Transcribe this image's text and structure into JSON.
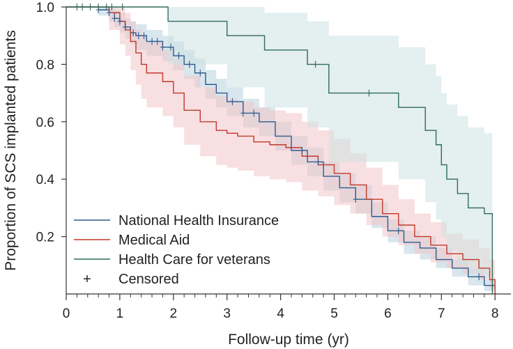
{
  "chart_data": {
    "type": "line",
    "subtype": "kaplan-meier",
    "title": "",
    "xlabel": "Follow-up time (yr)",
    "ylabel": "Proportion of SCS implanted patients",
    "xlim": [
      0,
      8.4
    ],
    "ylim": [
      0,
      1.0
    ],
    "x_ticks": [
      0,
      1,
      2,
      3,
      4,
      5,
      6,
      7,
      8
    ],
    "x_tick_labels": [
      "0",
      "1",
      "2",
      "3",
      "4",
      "5",
      "6",
      "7",
      "8"
    ],
    "y_ticks": [
      0.2,
      0.4,
      0.6,
      0.8,
      1.0
    ],
    "y_tick_labels": [
      "0.2",
      "0.4",
      "0.6",
      "0.8",
      "1.0"
    ],
    "legend": {
      "placement": "bottom-left",
      "censored_symbol": "+",
      "censored_label": "Censored"
    },
    "series": [
      {
        "name": "National Health Insurance",
        "color": "#2f5b8c",
        "band_color": "#b8d2e0",
        "x": [
          0,
          0.6,
          0.8,
          0.9,
          1.0,
          1.1,
          1.2,
          1.3,
          1.5,
          1.8,
          2.0,
          2.2,
          2.4,
          2.6,
          2.8,
          3.0,
          3.3,
          3.6,
          3.9,
          4.2,
          4.5,
          4.8,
          5.1,
          5.4,
          5.7,
          6.0,
          6.3,
          6.6,
          6.9,
          7.2,
          7.5,
          7.8,
          8.0
        ],
        "y": [
          1.0,
          0.99,
          0.98,
          0.96,
          0.95,
          0.93,
          0.91,
          0.9,
          0.88,
          0.86,
          0.83,
          0.8,
          0.77,
          0.73,
          0.7,
          0.67,
          0.63,
          0.6,
          0.55,
          0.5,
          0.46,
          0.41,
          0.37,
          0.33,
          0.27,
          0.22,
          0.18,
          0.16,
          0.12,
          0.09,
          0.06,
          0.03,
          0.0
        ],
        "lower": [
          1.0,
          0.97,
          0.95,
          0.93,
          0.91,
          0.89,
          0.87,
          0.85,
          0.83,
          0.81,
          0.78,
          0.75,
          0.72,
          0.68,
          0.65,
          0.62,
          0.58,
          0.55,
          0.5,
          0.45,
          0.41,
          0.36,
          0.32,
          0.28,
          0.23,
          0.18,
          0.14,
          0.12,
          0.09,
          0.06,
          0.03,
          0.01,
          0.0
        ],
        "upper": [
          1.0,
          1.0,
          1.0,
          0.99,
          0.98,
          0.96,
          0.95,
          0.94,
          0.92,
          0.9,
          0.88,
          0.85,
          0.82,
          0.78,
          0.75,
          0.72,
          0.68,
          0.65,
          0.6,
          0.55,
          0.51,
          0.46,
          0.42,
          0.38,
          0.32,
          0.26,
          0.22,
          0.2,
          0.16,
          0.12,
          0.09,
          0.05,
          0.02
        ],
        "censored_x": [
          0.6,
          0.8,
          0.9,
          1.0,
          1.1,
          1.25,
          1.35,
          1.45,
          1.6,
          1.7,
          1.8,
          1.95,
          2.1,
          2.3,
          2.5,
          3.1,
          3.3,
          3.5,
          4.4,
          4.7,
          5.4,
          6.2,
          7.7
        ]
      },
      {
        "name": "Medical Aid",
        "color": "#c0392b",
        "band_color": "#f2c4c8",
        "x": [
          0,
          0.8,
          1.0,
          1.1,
          1.2,
          1.3,
          1.4,
          1.5,
          1.8,
          2.0,
          2.2,
          2.5,
          2.8,
          3.0,
          3.2,
          3.5,
          3.8,
          4.1,
          4.4,
          4.7,
          5.0,
          5.3,
          5.6,
          5.9,
          6.2,
          6.5,
          6.8,
          7.1,
          7.4,
          7.7,
          7.9,
          8.0
        ],
        "y": [
          1.0,
          0.98,
          0.95,
          0.92,
          0.88,
          0.84,
          0.8,
          0.77,
          0.74,
          0.7,
          0.64,
          0.6,
          0.57,
          0.56,
          0.55,
          0.53,
          0.52,
          0.51,
          0.48,
          0.45,
          0.42,
          0.38,
          0.33,
          0.28,
          0.24,
          0.2,
          0.17,
          0.14,
          0.12,
          0.09,
          0.05,
          0.0
        ],
        "lower": [
          1.0,
          0.92,
          0.87,
          0.83,
          0.78,
          0.73,
          0.68,
          0.65,
          0.62,
          0.58,
          0.52,
          0.48,
          0.45,
          0.44,
          0.43,
          0.41,
          0.4,
          0.39,
          0.36,
          0.34,
          0.31,
          0.28,
          0.24,
          0.2,
          0.17,
          0.14,
          0.11,
          0.09,
          0.07,
          0.05,
          0.02,
          0.0
        ],
        "upper": [
          1.0,
          1.0,
          1.0,
          0.98,
          0.95,
          0.92,
          0.9,
          0.88,
          0.85,
          0.82,
          0.76,
          0.72,
          0.69,
          0.68,
          0.67,
          0.65,
          0.64,
          0.63,
          0.6,
          0.57,
          0.54,
          0.49,
          0.44,
          0.38,
          0.33,
          0.28,
          0.25,
          0.21,
          0.19,
          0.16,
          0.12,
          0.06
        ]
      },
      {
        "name": "Health Care for veterans",
        "color": "#2f6b5a",
        "band_color": "#cde2e2",
        "x": [
          0,
          1.9,
          3.0,
          3.7,
          4.5,
          4.9,
          5.5,
          6.2,
          6.7,
          6.9,
          7.0,
          7.1,
          7.3,
          7.5,
          7.8,
          7.95
        ],
        "y": [
          1.0,
          0.95,
          0.9,
          0.85,
          0.8,
          0.7,
          0.7,
          0.65,
          0.57,
          0.52,
          0.45,
          0.4,
          0.35,
          0.3,
          0.28,
          0.0
        ],
        "lower": [
          1.0,
          0.8,
          0.72,
          0.65,
          0.58,
          0.46,
          0.46,
          0.4,
          0.32,
          0.26,
          0.2,
          0.15,
          0.1,
          0.07,
          0.06,
          0.0
        ],
        "upper": [
          1.0,
          1.0,
          1.0,
          0.98,
          0.95,
          0.9,
          0.9,
          0.86,
          0.8,
          0.76,
          0.7,
          0.66,
          0.62,
          0.58,
          0.56,
          0.25
        ],
        "censored_x": [
          0.2,
          0.3,
          0.45,
          0.6,
          0.75,
          0.85,
          1.05,
          4.65,
          5.65
        ]
      }
    ]
  }
}
